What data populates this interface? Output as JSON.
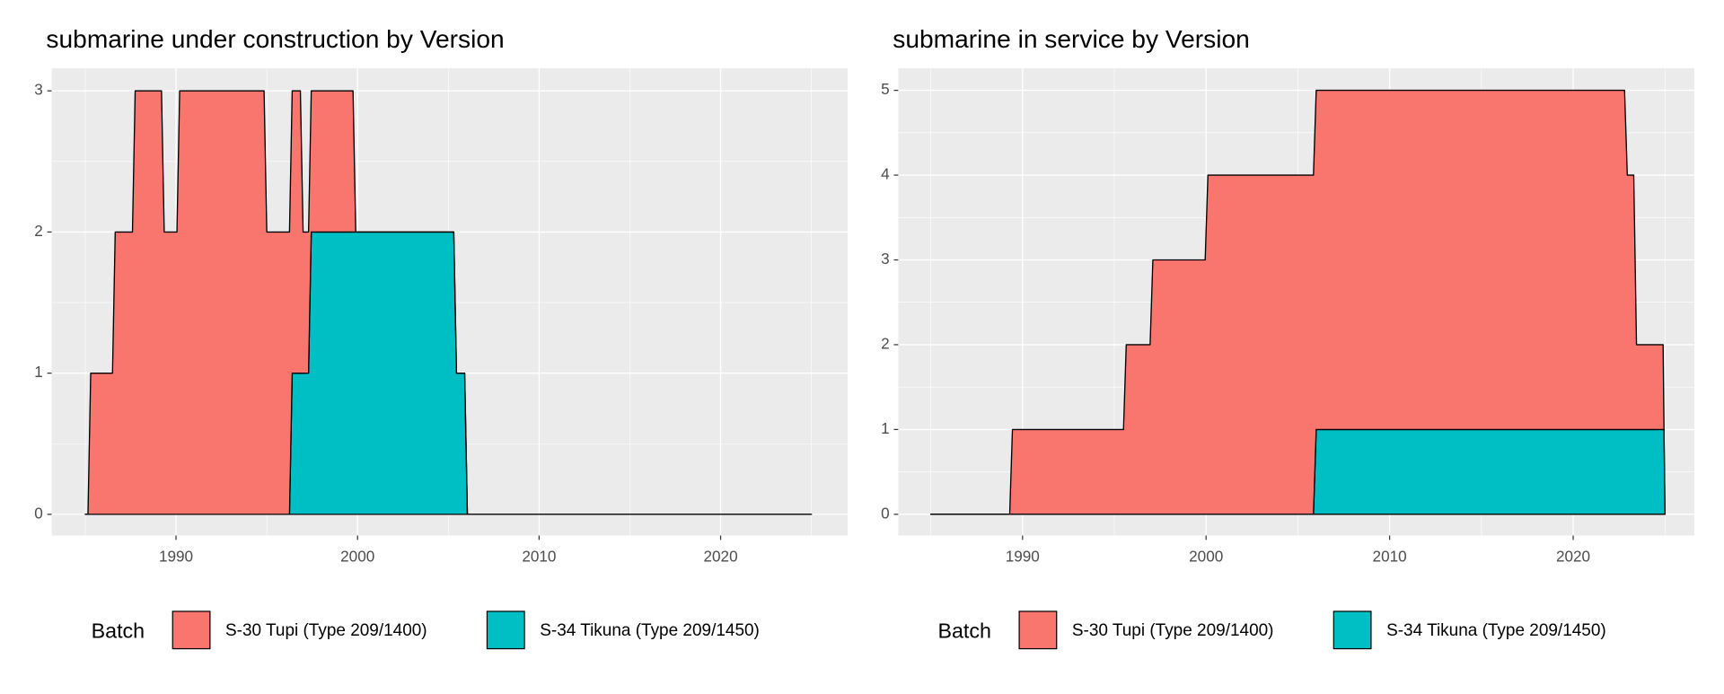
{
  "chart_data": [
    {
      "type": "area",
      "stacked": true,
      "title": "submarine under construction by Version",
      "x": [
        1985.0,
        1985.15,
        1985.3,
        1986.5,
        1986.65,
        1987.6,
        1987.75,
        1989.2,
        1989.35,
        1990.05,
        1990.2,
        1994.85,
        1995.0,
        1996.25,
        1996.4,
        1996.85,
        1997.0,
        1997.3,
        1997.45,
        1999.75,
        1999.9,
        2005.3,
        2005.45,
        2005.9,
        2006.05,
        2025.0
      ],
      "series": [
        {
          "name": "S-30 Tupi (Type 209/1400)",
          "color": "#f8766d",
          "values": [
            0,
            0,
            1,
            1,
            2,
            2,
            3,
            3,
            2,
            2,
            3,
            3,
            2,
            2,
            2,
            2,
            1,
            1,
            1,
            1,
            0,
            0,
            0,
            0,
            0,
            0
          ]
        },
        {
          "name": "S-34 Tikuna (Type 209/1450)",
          "color": "#00bfc4",
          "values": [
            0,
            0,
            0,
            0,
            0,
            0,
            0,
            0,
            0,
            0,
            0,
            0,
            0,
            0,
            1,
            1,
            1,
            1,
            2,
            2,
            2,
            2,
            1,
            1,
            0,
            0
          ]
        }
      ],
      "xlim": [
        1983.15,
        2027.0
      ],
      "ylim": [
        -0.15,
        3.16
      ],
      "xticks": [
        1990,
        2000,
        2010,
        2020
      ],
      "yticks": [
        0,
        1,
        2,
        3
      ],
      "grid": true,
      "legend_title": "Batch",
      "legend_position": "bottom"
    },
    {
      "type": "area",
      "stacked": true,
      "title": "submarine in service by Version",
      "x": [
        1985.0,
        1989.3,
        1989.45,
        1995.5,
        1995.65,
        1996.95,
        1997.1,
        1999.95,
        2000.1,
        2005.85,
        2006.0,
        2022.8,
        2022.95,
        2023.3,
        2023.45,
        2024.9,
        2024.95,
        2025.0
      ],
      "series": [
        {
          "name": "S-30 Tupi (Type 209/1400)",
          "color": "#f8766d",
          "values": [
            0,
            0,
            1,
            1,
            2,
            2,
            3,
            3,
            4,
            4,
            4,
            4,
            3,
            3,
            1,
            1,
            0,
            0
          ]
        },
        {
          "name": "S-34 Tikuna (Type 209/1450)",
          "color": "#00bfc4",
          "values": [
            0,
            0,
            0,
            0,
            0,
            0,
            0,
            0,
            0,
            0,
            1,
            1,
            1,
            1,
            1,
            1,
            1,
            0
          ]
        }
      ],
      "xlim": [
        1983.23,
        2026.6
      ],
      "ylim": [
        -0.25,
        5.26
      ],
      "xticks": [
        1990,
        2000,
        2010,
        2020
      ],
      "yticks": [
        0,
        1,
        2,
        3,
        4,
        5
      ],
      "grid": true,
      "legend_title": "Batch",
      "legend_position": "bottom"
    }
  ]
}
